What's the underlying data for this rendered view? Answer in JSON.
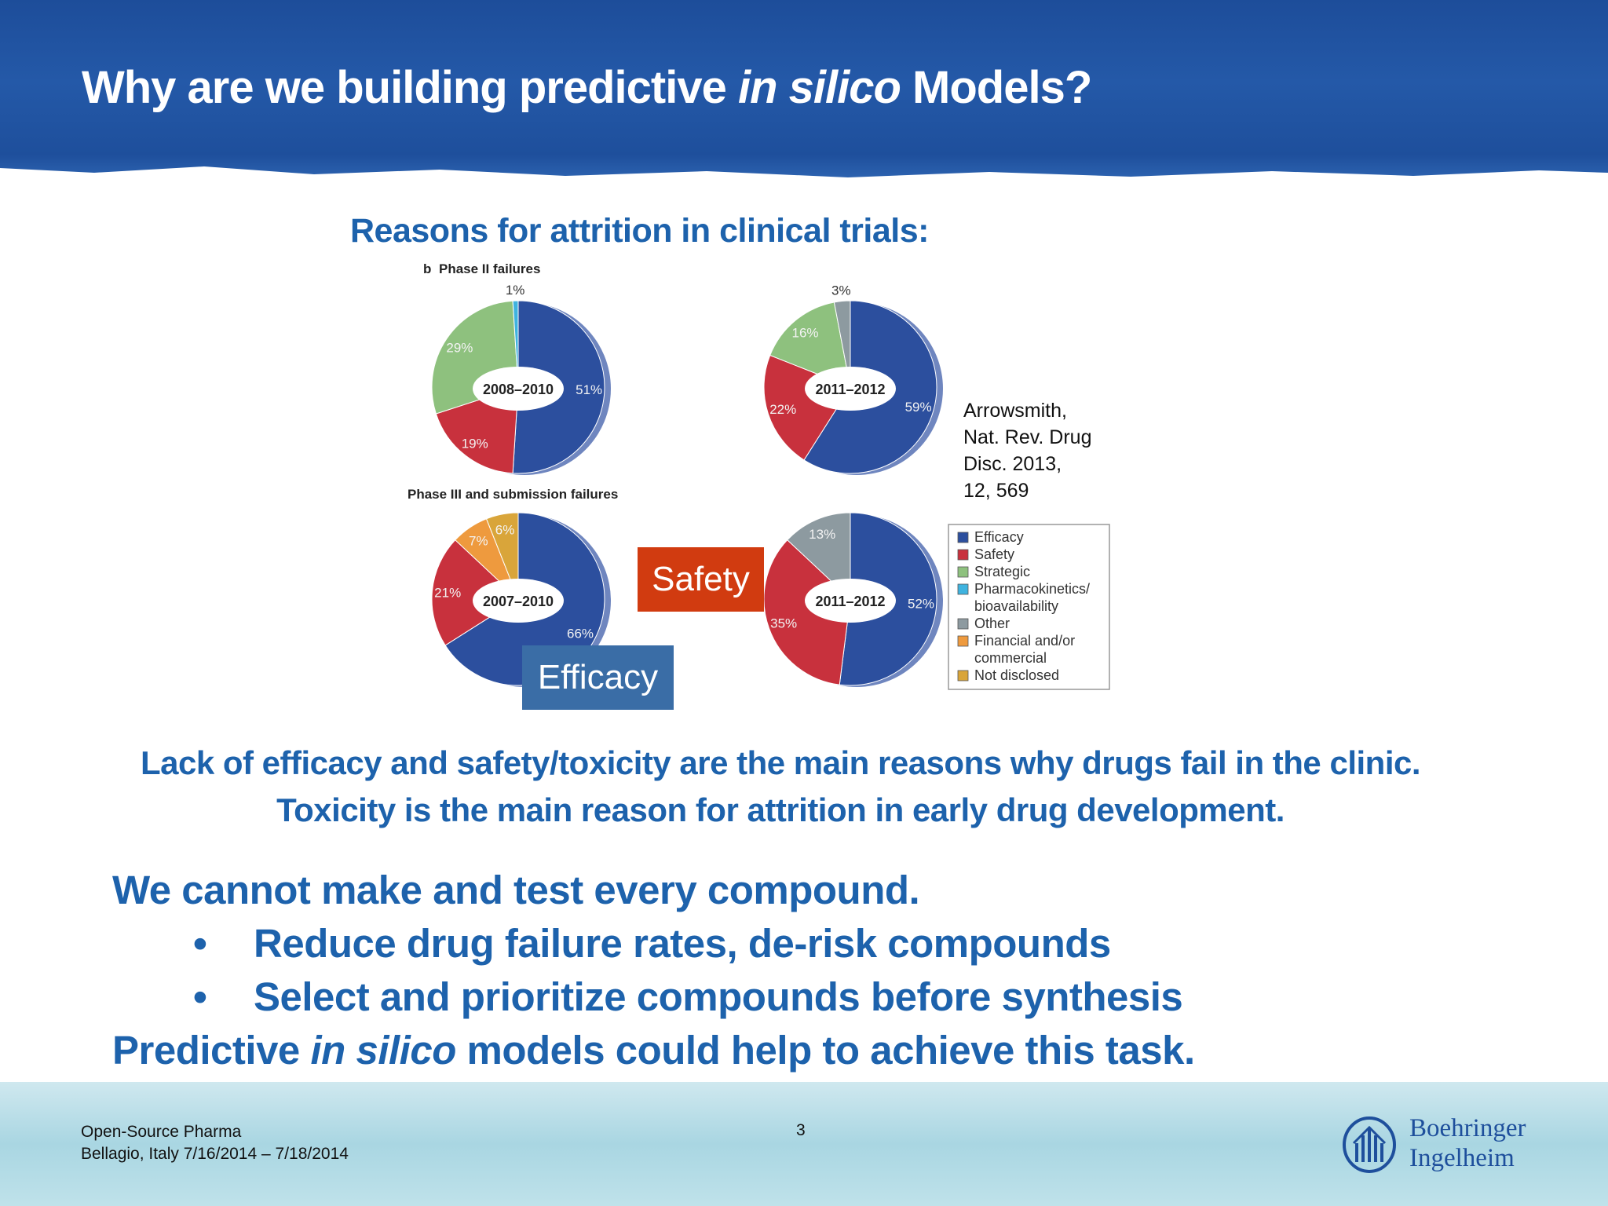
{
  "title": {
    "pre": "Why are we building predictive ",
    "italic": "in silico",
    "post": " Models?"
  },
  "subhead": "Reasons for attrition in clinical trials:",
  "figure": {
    "panel_b": "b",
    "phase2_label": "Phase II failures",
    "phase3_label": "Phase III and submission failures",
    "pies": [
      {
        "center": "2008–2010",
        "labels": [
          "51%",
          "19%",
          "29%",
          "1%"
        ]
      },
      {
        "center": "2011–2012",
        "labels": [
          "59%",
          "22%",
          "16%",
          "3%"
        ]
      },
      {
        "center": "2007–2010",
        "labels": [
          "66%",
          "21%",
          "7%",
          "6%"
        ]
      },
      {
        "center": "2011–2012",
        "labels": [
          "52%",
          "35%",
          "13%"
        ]
      }
    ],
    "legend": [
      {
        "label": "Efficacy",
        "color": "#2c4f9e"
      },
      {
        "label": "Safety",
        "color": "#c8313d"
      },
      {
        "label": "Strategic",
        "color": "#8ec17e"
      },
      {
        "label": "Pharmacokinetics/",
        "label2": "bioavailability",
        "color": "#3fb3df"
      },
      {
        "label": "Other",
        "color": "#8d9aa0"
      },
      {
        "label": "Financial and/or",
        "label2": "commercial",
        "color": "#ee9a3e"
      },
      {
        "label": "Not disclosed",
        "color": "#d9a53a"
      }
    ]
  },
  "chart_data": [
    {
      "type": "pie",
      "title": "Phase II failures",
      "center_label": "2008–2010",
      "categories": [
        "Efficacy",
        "Safety",
        "Strategic",
        "Pharmacokinetics/bioavailability"
      ],
      "values": [
        51,
        19,
        29,
        1
      ]
    },
    {
      "type": "pie",
      "title": "",
      "center_label": "2011–2012",
      "categories": [
        "Efficacy",
        "Safety",
        "Strategic",
        "Other"
      ],
      "values": [
        59,
        22,
        16,
        3
      ]
    },
    {
      "type": "pie",
      "title": "Phase III and submission failures",
      "center_label": "2007–2010",
      "categories": [
        "Efficacy",
        "Safety",
        "Financial and/or commercial",
        "Not disclosed"
      ],
      "values": [
        66,
        21,
        7,
        6
      ]
    },
    {
      "type": "pie",
      "title": "",
      "center_label": "2011–2012",
      "categories": [
        "Efficacy",
        "Safety",
        "Other"
      ],
      "values": [
        52,
        35,
        13
      ]
    }
  ],
  "citation": [
    "Arrowsmith,",
    "Nat. Rev. Drug",
    "Disc. 2013,",
    "12, 569"
  ],
  "callouts": {
    "safety": "Safety",
    "efficacy": "Efficacy"
  },
  "statements": [
    "Lack of efficacy and safety/toxicity are the main reasons why drugs fail in the clinic.",
    "Toxicity is the main reason for attrition in early drug development."
  ],
  "body": {
    "line1": "We cannot make and test every compound.",
    "bullets": [
      "Reduce drug failure rates, de-risk compounds",
      "Select and prioritize compounds before synthesis"
    ],
    "bullet_char": "•",
    "line2_pre": "Predictive ",
    "line2_italic": "in silico",
    "line2_post": " models could help to achieve this task."
  },
  "footer": {
    "line1": "Open-Source Pharma",
    "line2": "Bellagio, Italy 7/16/2014 – 7/18/2014",
    "page": "3",
    "logo_line1": "Boehringer",
    "logo_line2": "Ingelheim"
  }
}
